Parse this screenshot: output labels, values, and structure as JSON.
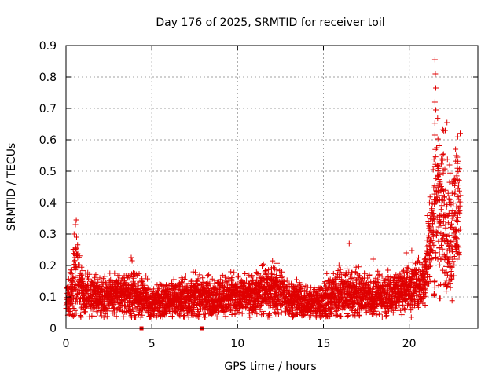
{
  "chart_data": {
    "type": "scatter",
    "title": "Day 176 of 2025, SRMTID for receiver toil",
    "xlabel": "GPS time / hours",
    "ylabel": "SRMTID / TECUs",
    "xlim": [
      0,
      24
    ],
    "ylim": [
      0,
      0.9
    ],
    "grid": true,
    "x_ticks": [
      0,
      5,
      10,
      15,
      20
    ],
    "y_ticks": [
      0,
      0.1,
      0.2,
      0.3,
      0.4,
      0.5,
      0.6,
      0.7,
      0.8,
      0.9
    ],
    "x_tick_labels": [
      "0",
      "5",
      "10",
      "15",
      "20"
    ],
    "y_tick_labels": [
      "0",
      "0.1",
      "0.2",
      "0.3",
      "0.4",
      "0.5",
      "0.6",
      "0.7",
      "0.8",
      "0.9"
    ],
    "marker": "+",
    "color": "#e00000",
    "series": [
      {
        "name": "SRMTID",
        "profile": [
          [
            0.0,
            0.08,
            0.025
          ],
          [
            0.3,
            0.09,
            0.04
          ],
          [
            0.5,
            0.17,
            0.06
          ],
          [
            0.7,
            0.16,
            0.07
          ],
          [
            1.0,
            0.1,
            0.035
          ],
          [
            2.0,
            0.1,
            0.03
          ],
          [
            3.0,
            0.11,
            0.03
          ],
          [
            4.0,
            0.11,
            0.04
          ],
          [
            5.0,
            0.08,
            0.025
          ],
          [
            6.0,
            0.09,
            0.03
          ],
          [
            7.0,
            0.1,
            0.035
          ],
          [
            8.0,
            0.1,
            0.03
          ],
          [
            9.0,
            0.1,
            0.03
          ],
          [
            10.0,
            0.1,
            0.03
          ],
          [
            11.0,
            0.11,
            0.03
          ],
          [
            12.0,
            0.13,
            0.04
          ],
          [
            13.0,
            0.1,
            0.03
          ],
          [
            14.0,
            0.08,
            0.025
          ],
          [
            15.0,
            0.09,
            0.03
          ],
          [
            16.0,
            0.11,
            0.035
          ],
          [
            17.0,
            0.11,
            0.035
          ],
          [
            18.0,
            0.1,
            0.03
          ],
          [
            19.0,
            0.11,
            0.035
          ],
          [
            20.0,
            0.13,
            0.04
          ],
          [
            20.8,
            0.14,
            0.04
          ],
          [
            21.2,
            0.28,
            0.07
          ],
          [
            21.6,
            0.4,
            0.14
          ],
          [
            22.0,
            0.35,
            0.12
          ],
          [
            22.5,
            0.3,
            0.1
          ],
          [
            23.0,
            0.42,
            0.1
          ]
        ],
        "spikes": [
          [
            0.5,
            0.235
          ],
          [
            0.55,
            0.33
          ],
          [
            0.6,
            0.345
          ],
          [
            0.62,
            0.29
          ],
          [
            3.8,
            0.225
          ],
          [
            3.85,
            0.215
          ],
          [
            16.5,
            0.27
          ],
          [
            17.9,
            0.22
          ],
          [
            21.5,
            0.855
          ],
          [
            21.52,
            0.81
          ],
          [
            21.55,
            0.765
          ],
          [
            21.5,
            0.72
          ],
          [
            21.55,
            0.695
          ],
          [
            21.5,
            0.615
          ],
          [
            21.6,
            0.575
          ],
          [
            22.2,
            0.655
          ],
          [
            22.1,
            0.63
          ],
          [
            21.95,
            0.535
          ],
          [
            22.0,
            0.555
          ],
          [
            22.7,
            0.57
          ],
          [
            22.75,
            0.55
          ],
          [
            22.8,
            0.545
          ],
          [
            22.35,
            0.52
          ],
          [
            21.4,
            0.505
          ],
          [
            22.85,
            0.445
          ],
          [
            21.8,
            0.46
          ],
          [
            22.5,
            0.43
          ]
        ]
      }
    ],
    "gap_markers_x": [
      4.4,
      7.9
    ]
  }
}
